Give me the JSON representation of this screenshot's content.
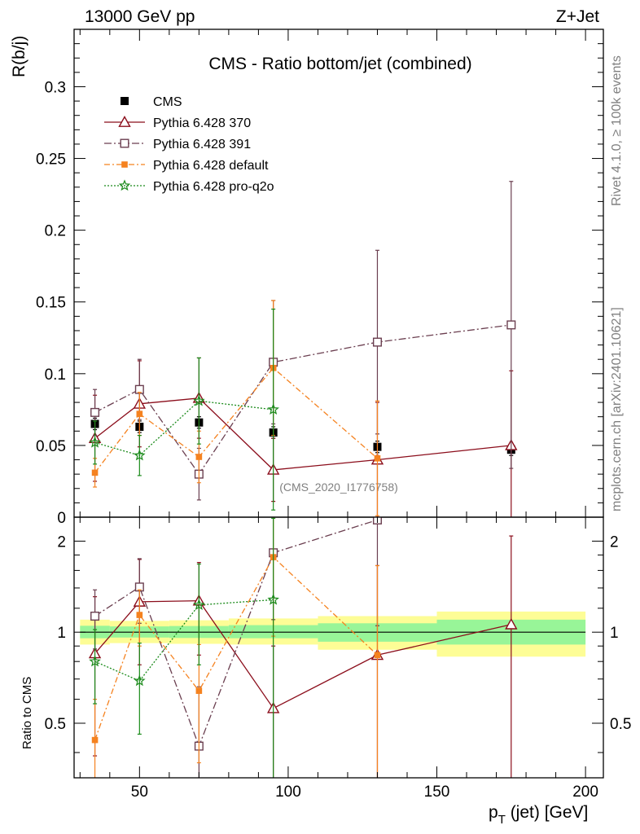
{
  "header": {
    "left": "13000 GeV pp",
    "right": "Z+Jet"
  },
  "side_labels": {
    "rivet": "Rivet 4.1.0, ≥ 100k events",
    "mcplots": "mcplots.cern.ch [arXiv:2401.10621]"
  },
  "chart_data": [
    {
      "type": "scatter",
      "panel": "main",
      "title": "CMS - Ratio bottom/jet (combined)",
      "watermark": "(CMS_2020_I1776758)",
      "ylabel": "R(b/j)",
      "xlim": [
        28,
        206
      ],
      "ylim": [
        0,
        0.34
      ],
      "yticks": [
        0,
        0.05,
        0.1,
        0.15,
        0.2,
        0.25,
        0.3
      ],
      "ytick_labels": [
        "0",
        "0.05",
        "0.1",
        "0.15",
        "0.2",
        "0.25",
        "0.3"
      ],
      "legend": [
        {
          "key": "cms",
          "label": "CMS"
        },
        {
          "key": "p370",
          "label": "Pythia 6.428 370"
        },
        {
          "key": "p391",
          "label": "Pythia 6.428 391"
        },
        {
          "key": "pdef",
          "label": "Pythia 6.428 default"
        },
        {
          "key": "pq2o",
          "label": "Pythia 6.428 pro-q2o"
        }
      ],
      "series": [
        {
          "key": "cms",
          "name": "CMS",
          "color": "#000000",
          "marker": "square",
          "x": [
            35,
            50,
            70,
            95,
            130,
            175
          ],
          "y": [
            0.065,
            0.063,
            0.066,
            0.059,
            0.049,
            0.047
          ],
          "err": [
            0.004,
            0.004,
            0.004,
            0.004,
            0.004,
            0.004
          ]
        },
        {
          "key": "p370",
          "name": "Pythia 6.428 370",
          "color": "#8b0d1b",
          "marker": "triangle",
          "dash": "",
          "x": [
            35,
            50,
            70,
            95,
            130,
            175
          ],
          "y": [
            0.055,
            0.079,
            0.083,
            0.033,
            0.04,
            0.05
          ],
          "err": [
            0.03,
            0.03,
            0.028,
            0.022,
            0.04,
            0.052
          ]
        },
        {
          "key": "p391",
          "name": "Pythia 6.428 391",
          "color": "#6b3f50",
          "marker": "square-open",
          "dash": "9,3,2,3",
          "x": [
            35,
            50,
            70,
            95,
            130,
            175
          ],
          "y": [
            0.073,
            0.089,
            0.03,
            0.108,
            0.122,
            0.134
          ],
          "err": [
            0.016,
            0.021,
            0.018,
            0.043,
            0.064,
            0.1
          ]
        },
        {
          "key": "pdef",
          "name": "Pythia 6.428 default",
          "color": "#f5821f",
          "marker": "square-small",
          "dash": "7,3,2,3",
          "x": [
            35,
            50,
            70,
            95,
            130,
            175
          ],
          "y": [
            0.031,
            0.072,
            0.042,
            0.104,
            0.041,
            null
          ],
          "err": [
            0.01,
            0.015,
            0.018,
            0.047,
            0.04,
            null
          ]
        },
        {
          "key": "pq2o",
          "name": "Pythia 6.428 pro-q2o",
          "color": "#1a8a1a",
          "marker": "star",
          "dash": "2,2",
          "x": [
            35,
            50,
            70,
            95,
            130,
            175
          ],
          "y": [
            0.052,
            0.043,
            0.081,
            0.075,
            null,
            null
          ],
          "err": [
            0.015,
            0.014,
            0.03,
            0.07,
            null,
            null
          ]
        }
      ]
    },
    {
      "type": "scatter",
      "panel": "ratio",
      "ylabel": "Ratio to CMS",
      "xlabel": "p_T (jet) [GeV]",
      "xlabel_main": "p",
      "xlabel_sub": "T",
      "xlabel_rest": " (jet) [GeV]",
      "xlim": [
        28,
        206
      ],
      "ylim": [
        0.33,
        2.4
      ],
      "log_y": true,
      "xticks": [
        50,
        100,
        150,
        200
      ],
      "xtick_labels": [
        "50",
        "100",
        "150",
        "200"
      ],
      "yticks": [
        0.5,
        1,
        2
      ],
      "ytick_labels": [
        "0.5",
        "1",
        "2"
      ],
      "bands": {
        "x_edges": [
          30,
          40,
          60,
          80,
          110,
          150,
          200
        ],
        "yellow_lo": [
          0.91,
          0.92,
          0.915,
          0.91,
          0.875,
          0.83
        ],
        "yellow_hi": [
          1.1,
          1.09,
          1.095,
          1.11,
          1.13,
          1.17
        ],
        "green_lo": [
          0.955,
          0.96,
          0.957,
          0.955,
          0.93,
          0.91
        ],
        "green_hi": [
          1.05,
          1.045,
          1.048,
          1.055,
          1.07,
          1.1
        ]
      },
      "series": [
        {
          "key": "p370",
          "color": "#8b0d1b",
          "marker": "triangle",
          "dash": "",
          "x": [
            35,
            50,
            70,
            95,
            130,
            175
          ],
          "y": [
            0.85,
            1.26,
            1.27,
            0.56,
            0.84,
            1.06
          ],
          "err_lo": [
            0.46,
            0.48,
            0.43,
            0.34,
            0.82,
            1.06
          ],
          "err_hi": [
            0.46,
            0.48,
            0.43,
            0.34,
            0.82,
            1.02
          ]
        },
        {
          "key": "p391",
          "color": "#6b3f50",
          "marker": "square-open",
          "dash": "9,3,2,3",
          "x": [
            35,
            50,
            70,
            95,
            130,
            175
          ],
          "y": [
            1.13,
            1.41,
            0.42,
            1.83,
            2.35,
            null
          ],
          "err_lo": [
            0.25,
            0.34,
            0.24,
            0.73,
            1.3,
            null
          ],
          "err_hi": [
            0.25,
            0.34,
            0.24,
            0.73,
            1.3,
            null
          ]
        },
        {
          "key": "pdef",
          "color": "#f5821f",
          "marker": "square-small",
          "dash": "7,3,2,3",
          "x": [
            35,
            50,
            70,
            95,
            130,
            175
          ],
          "y": [
            0.44,
            1.14,
            0.64,
            1.77,
            0.84,
            null
          ],
          "err_lo": [
            0.16,
            0.24,
            0.27,
            0.8,
            0.82,
            null
          ],
          "err_hi": [
            0.16,
            0.24,
            0.27,
            0.8,
            0.82,
            null
          ]
        },
        {
          "key": "pq2o",
          "color": "#1a8a1a",
          "marker": "star",
          "dash": "2,2",
          "x": [
            35,
            50,
            70,
            95,
            130,
            175
          ],
          "y": [
            0.8,
            0.69,
            1.23,
            1.28,
            null,
            null
          ],
          "err_lo": [
            0.22,
            0.23,
            0.45,
            1.1,
            null,
            null
          ],
          "err_hi": [
            0.22,
            0.23,
            0.45,
            1.1,
            null,
            null
          ]
        }
      ]
    }
  ]
}
